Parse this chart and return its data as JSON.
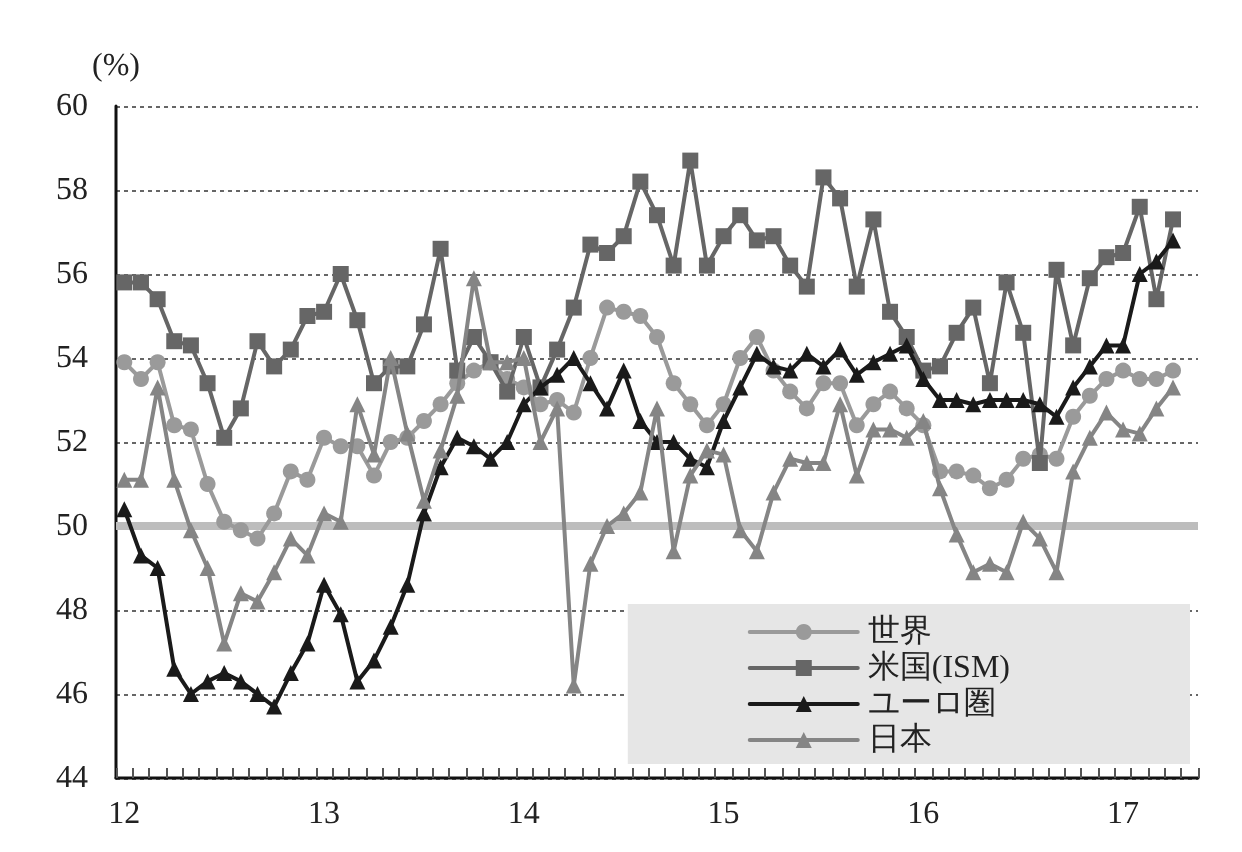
{
  "chart_data": {
    "type": "line",
    "ylabel": "(%)",
    "categories": [
      "12",
      null,
      null,
      null,
      null,
      null,
      null,
      null,
      null,
      null,
      null,
      null,
      "13",
      null,
      null,
      null,
      null,
      null,
      null,
      null,
      null,
      null,
      null,
      null,
      "14",
      null,
      null,
      null,
      null,
      null,
      null,
      null,
      null,
      null,
      null,
      null,
      "15",
      null,
      null,
      null,
      null,
      null,
      null,
      null,
      null,
      null,
      null,
      null,
      "16",
      null,
      null,
      null,
      null,
      null,
      null,
      null,
      null,
      null,
      null,
      null,
      "17",
      null,
      null,
      null,
      null
    ],
    "series": [
      {
        "name": "世界",
        "color": "#9a9a9a",
        "marker": "circle",
        "values": [
          53.9,
          53.5,
          53.9,
          52.4,
          52.3,
          51.0,
          50.1,
          49.9,
          49.7,
          50.3,
          51.3,
          51.1,
          52.1,
          51.9,
          51.9,
          51.2,
          52.0,
          52.1,
          52.5,
          52.9,
          53.4,
          53.7,
          53.9,
          53.5,
          53.3,
          52.9,
          53.0,
          52.7,
          54.0,
          55.2,
          55.1,
          55.0,
          54.5,
          53.4,
          52.9,
          52.4,
          52.9,
          54.0,
          54.5,
          53.7,
          53.2,
          52.8,
          53.4,
          53.4,
          52.4,
          52.9,
          53.2,
          52.8,
          52.4,
          51.3,
          51.3,
          51.2,
          50.9,
          51.1,
          51.6,
          51.7,
          51.6,
          52.6,
          53.1,
          53.5,
          53.7,
          53.5,
          53.5,
          53.7,
          null
        ]
      },
      {
        "name": "米国(ISM)",
        "color": "#666666",
        "marker": "square",
        "values": [
          55.8,
          55.8,
          55.4,
          54.4,
          54.3,
          53.4,
          52.1,
          52.8,
          54.4,
          53.8,
          54.2,
          55.0,
          55.1,
          56.0,
          54.9,
          53.4,
          53.8,
          53.8,
          54.8,
          56.6,
          53.7,
          54.5,
          53.9,
          53.2,
          54.5,
          53.3,
          54.2,
          55.2,
          56.7,
          56.5,
          56.9,
          58.2,
          57.4,
          56.2,
          58.7,
          56.2,
          56.9,
          57.4,
          56.8,
          56.9,
          56.2,
          55.7,
          58.3,
          57.8,
          55.7,
          57.3,
          55.1,
          54.5,
          53.7,
          53.8,
          54.6,
          55.2,
          53.4,
          55.8,
          54.6,
          51.5,
          56.1,
          54.3,
          55.9,
          56.4,
          56.5,
          57.6,
          55.4,
          57.3,
          null
        ]
      },
      {
        "name": "ユーロ圏",
        "color": "#1a1a1a",
        "marker": "triangle",
        "values": [
          50.4,
          49.3,
          49.0,
          46.6,
          46.0,
          46.3,
          46.5,
          46.3,
          46.0,
          45.7,
          46.5,
          47.2,
          48.6,
          47.9,
          46.3,
          46.8,
          47.6,
          48.6,
          50.3,
          51.4,
          52.1,
          51.9,
          51.6,
          52.0,
          52.9,
          53.3,
          53.6,
          54.0,
          53.4,
          52.8,
          53.7,
          52.5,
          52.0,
          52.0,
          51.6,
          51.4,
          52.5,
          53.3,
          54.1,
          53.8,
          53.7,
          54.1,
          53.8,
          54.2,
          53.6,
          53.9,
          54.1,
          54.3,
          53.5,
          53.0,
          53.0,
          52.9,
          53.0,
          53.0,
          53.0,
          52.9,
          52.6,
          53.3,
          53.8,
          54.3,
          54.3,
          56.0,
          56.3,
          56.8,
          null
        ]
      },
      {
        "name": "日本",
        "color": "#858585",
        "marker": "triangle",
        "values": [
          51.1,
          51.1,
          53.3,
          51.1,
          49.9,
          49.0,
          47.2,
          48.4,
          48.2,
          48.9,
          49.7,
          49.3,
          50.3,
          50.1,
          52.9,
          51.7,
          54.0,
          52.2,
          50.6,
          51.8,
          53.1,
          55.9,
          53.9,
          53.9,
          54.0,
          52.0,
          52.8,
          46.2,
          49.1,
          50.0,
          50.3,
          50.8,
          52.8,
          49.4,
          51.2,
          51.8,
          51.7,
          49.9,
          49.4,
          50.8,
          51.6,
          51.5,
          51.5,
          52.9,
          51.2,
          52.3,
          52.3,
          52.1,
          52.5,
          50.9,
          49.8,
          48.9,
          49.1,
          48.9,
          50.1,
          49.7,
          48.9,
          51.3,
          52.1,
          52.7,
          52.3,
          52.2,
          52.8,
          53.3,
          null
        ]
      }
    ],
    "ylim": [
      44,
      60
    ],
    "yticks": [
      44,
      46,
      48,
      50,
      52,
      54,
      56,
      58,
      60
    ],
    "ref_lines": [
      {
        "axis": "y",
        "value": 50,
        "color": "#bdbdbd"
      }
    ],
    "grid": "y",
    "legend": "bottom right",
    "line_style": "solid"
  }
}
